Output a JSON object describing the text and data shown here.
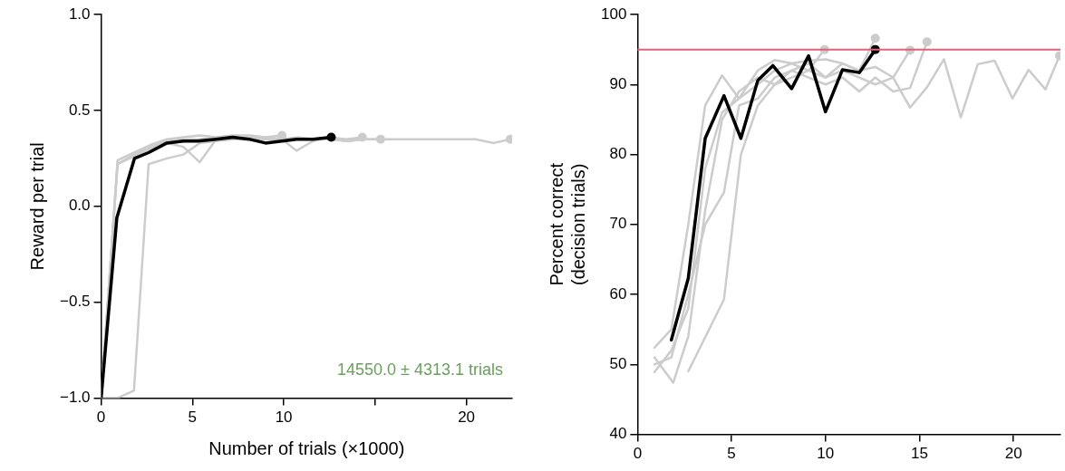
{
  "chart_data": [
    {
      "type": "line",
      "xlabel": "Number of trials (×1000)",
      "ylabel": "Reward per trial",
      "xlim": [
        0,
        22.5
      ],
      "xticks": [
        0,
        5,
        10,
        {
          "value": 15,
          "label": null
        },
        20
      ],
      "ylim": [
        -1.0,
        1.0
      ],
      "yticks": [
        {
          "value": -1.0,
          "label": "−1.0"
        },
        {
          "value": -0.5,
          "label": "−0.5"
        },
        {
          "value": 0.0,
          "label": "0.0"
        },
        {
          "value": 0.5,
          "label": "0.5"
        },
        {
          "value": 1.0,
          "label": "1.0"
        }
      ],
      "grid": false,
      "legend": false,
      "line_style": "solid",
      "annotations": [
        "14550.0 ± 4313.1 trials"
      ],
      "series": [
        {
          "color": "#cccccc",
          "x": [
            0,
            0.9,
            1.8,
            2.7,
            3.6,
            4.5,
            5.4,
            6.3,
            7.2,
            8.1,
            9.0,
            9.9
          ],
          "values": [
            -1.0,
            0.24,
            0.28,
            0.32,
            0.35,
            0.36,
            0.37,
            0.36,
            0.37,
            0.37,
            0.36,
            0.37
          ]
        },
        {
          "color": "#cccccc",
          "x": [
            0,
            0.9,
            1.8,
            2.7,
            3.6,
            4.5,
            5.4,
            6.3,
            7.2,
            8.1,
            9.0,
            9.9,
            10.7,
            11.6,
            12.5,
            13.4,
            14.3
          ],
          "values": [
            -1.0,
            0.22,
            0.27,
            0.31,
            0.34,
            0.35,
            0.35,
            0.36,
            0.36,
            0.35,
            0.36,
            0.35,
            0.29,
            0.34,
            0.36,
            0.35,
            0.36
          ]
        },
        {
          "color": "#cccccc",
          "x": [
            0,
            0.9,
            1.8,
            2.7,
            3.6,
            4.5,
            5.4,
            6.3,
            7.2,
            8.1,
            9.0,
            9.9,
            10.8,
            11.7,
            12.6,
            13.5,
            14.4,
            15.3
          ],
          "values": [
            -1.0,
            0.22,
            0.26,
            0.3,
            0.33,
            0.31,
            0.23,
            0.35,
            0.35,
            0.36,
            0.35,
            0.35,
            0.36,
            0.35,
            0.35,
            0.34,
            0.35,
            0.35
          ]
        },
        {
          "color": "#cccccc",
          "x": [
            0,
            0.9,
            1.8,
            2.6,
            3.6,
            4.5,
            5.4,
            6.3,
            7.2,
            8.1,
            9.0,
            9.9,
            10.8,
            11.7,
            12.6,
            13.5,
            14.4,
            15.3,
            17.0,
            19.0,
            20.5,
            21.5,
            22.4
          ],
          "values": [
            -1.0,
            -1.0,
            -0.96,
            0.22,
            0.25,
            0.27,
            0.33,
            0.34,
            0.35,
            0.35,
            0.35,
            0.35,
            0.35,
            0.35,
            0.35,
            0.34,
            0.35,
            0.35,
            0.35,
            0.35,
            0.35,
            0.33,
            0.35
          ]
        },
        {
          "color": "#000000",
          "x": [
            0,
            0.86,
            1.83,
            2.6,
            3.6,
            4.5,
            5.3,
            6.3,
            7.2,
            8.1,
            9.0,
            9.9,
            10.7,
            11.6,
            12.6
          ],
          "values": [
            -1.0,
            -0.06,
            0.25,
            0.28,
            0.33,
            0.34,
            0.34,
            0.35,
            0.36,
            0.35,
            0.33,
            0.34,
            0.35,
            0.35,
            0.36
          ]
        }
      ]
    },
    {
      "type": "line",
      "ylabel": "Percent correct\n(decision trials)",
      "xlim": [
        0,
        22.5
      ],
      "xticks": [
        0,
        5,
        10,
        15,
        20
      ],
      "ylim": [
        40,
        100
      ],
      "yticks": [
        40,
        50,
        60,
        70,
        80,
        90,
        100
      ],
      "grid": false,
      "legend": false,
      "line_style": "solid",
      "ref_lines": [
        {
          "axis": "y",
          "value": 95,
          "color": "#d9696b"
        }
      ],
      "series": [
        {
          "color": "#cccccc",
          "x": [
            0.9,
            1.8,
            2.7,
            3.6,
            4.5,
            5.4,
            6.4,
            7.3,
            8.2,
            9.1,
            9.95
          ],
          "values": [
            52.4,
            55,
            70,
            87,
            91.3,
            88,
            90,
            92,
            93,
            92,
            95.0
          ]
        },
        {
          "color": "#cccccc",
          "x": [
            0.9,
            1.8,
            2.7,
            3.6,
            4.6,
            5.4,
            6.4,
            7.3,
            8.2,
            9.1,
            10.0,
            10.9,
            11.8,
            12.65
          ],
          "values": [
            50.0,
            51,
            60,
            70,
            74.6,
            87,
            88,
            91,
            92,
            93,
            91,
            93,
            92,
            96.6
          ]
        },
        {
          "color": "#cccccc",
          "x": [
            0.9,
            1.8,
            2.7,
            3.6,
            4.5,
            5.4,
            6.4,
            7.3,
            8.2,
            9.1,
            10.0,
            10.9,
            11.8,
            12.65,
            13.6,
            14.5
          ],
          "values": [
            48.9,
            52,
            58,
            78,
            86,
            88,
            92,
            93.5,
            93,
            93.4,
            93.6,
            93,
            92,
            92.5,
            91,
            94.9
          ]
        },
        {
          "color": "#cccccc",
          "x": [
            0.9,
            1.9,
            2.7,
            3.6,
            4.5,
            5.4,
            6.4,
            7.3,
            8.2,
            9.1,
            10.0,
            10.9,
            11.8,
            12.65,
            13.6,
            14.5,
            15.4
          ],
          "values": [
            51,
            47.4,
            54,
            72,
            85,
            89,
            91,
            90,
            92,
            91,
            90,
            91,
            89,
            91,
            89,
            89.5,
            96.1
          ]
        },
        {
          "color": "#cccccc",
          "x": [
            2.7,
            4.6,
            5.5,
            6.4,
            7.3,
            8.2,
            9.1,
            10.0,
            10.9,
            11.8,
            12.65,
            13.6,
            14.5,
            15.4,
            16.3,
            17.2,
            18.1,
            19.0,
            19.95,
            20.8,
            21.7,
            22.45
          ],
          "values": [
            49.0,
            59.3,
            80,
            87,
            90,
            91,
            92,
            91,
            92,
            91,
            90,
            91,
            86.7,
            89.6,
            93.6,
            85.3,
            92.9,
            93.4,
            88.0,
            92.1,
            89.3,
            94.1
          ]
        },
        {
          "color": "#000000",
          "x": [
            1.8,
            2.7,
            3.6,
            4.6,
            5.5,
            6.4,
            7.2,
            8.2,
            9.1,
            10.0,
            10.9,
            11.8,
            12.65
          ],
          "values": [
            53.5,
            62.3,
            82.3,
            88.4,
            82.3,
            90.6,
            92.7,
            89.4,
            94.1,
            86.1,
            92.1,
            91.7,
            95.0
          ]
        }
      ]
    }
  ]
}
